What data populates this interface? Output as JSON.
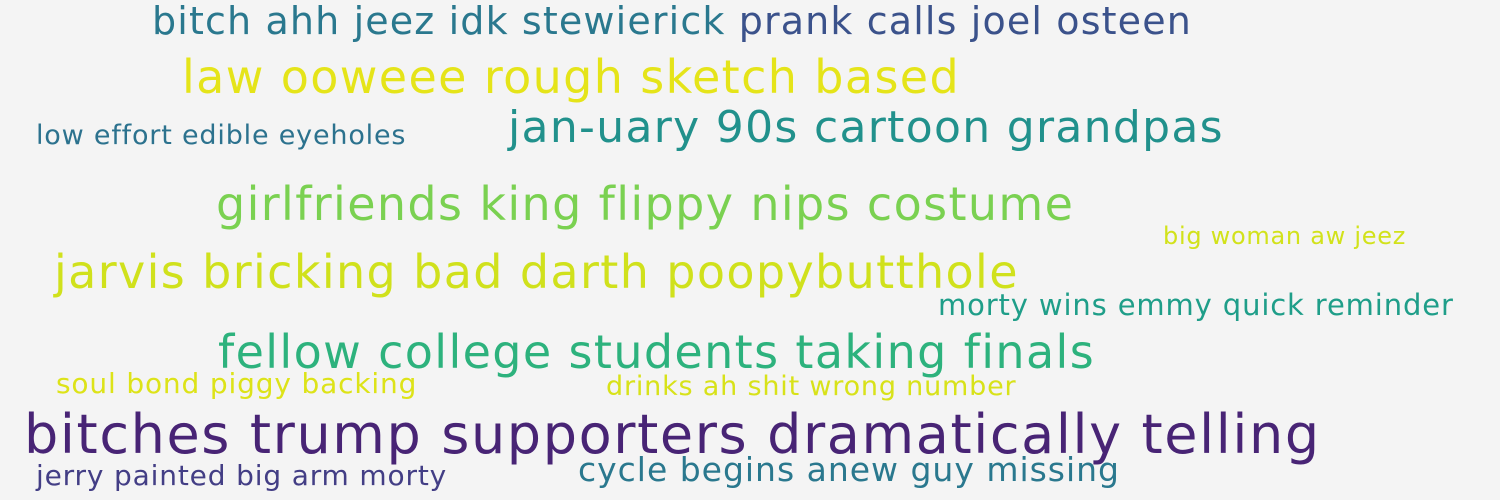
{
  "phrases": [
    {
      "text": "bitch ahh jeez idk stewierick prank calls joel osteen",
      "color": "#2a788e"
    },
    {
      "text": "law ooweee rough sketch based",
      "color": "#e5e419"
    },
    {
      "text": "low effort edible eyeholes",
      "color": "#2c728e"
    },
    {
      "text": "jan-uary 90s cartoon grandpas",
      "color": "#21918c"
    },
    {
      "text": "girlfriends king flippy nips costume",
      "color": "#7ad151"
    },
    {
      "text": "big woman aw jeez",
      "color": "#d2e21b"
    },
    {
      "text": "jarvis bricking bad darth poopybutthole",
      "color": "#d0e11c"
    },
    {
      "text": "morty wins emmy quick reminder",
      "color": "#1f9e89"
    },
    {
      "text": "fellow college students taking finals",
      "color": "#2db27d"
    },
    {
      "text": "soul bond piggy backing",
      "color": "#dde318"
    },
    {
      "text": "drinks ah shit wrong number",
      "color": "#d8e219"
    },
    {
      "text": "bitches trump supporters dramatically telling",
      "color": "#482475"
    },
    {
      "text": "jerry painted big arm morty",
      "color": "#433e85"
    },
    {
      "text": "cycle begins anew guy missing",
      "color": "#2a788e"
    }
  ]
}
